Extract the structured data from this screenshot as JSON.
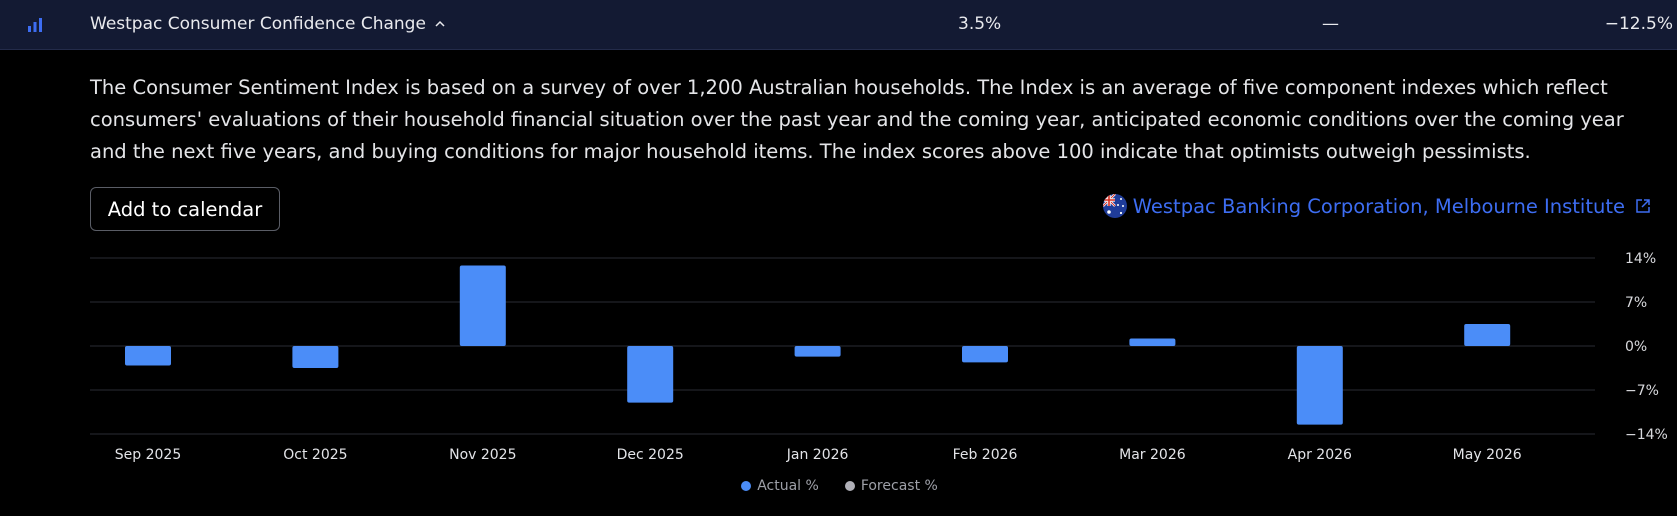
{
  "header": {
    "title": "Westpac Consumer Confidence Change",
    "actual": "3.5%",
    "forecast": "—",
    "prior": "−12.5%"
  },
  "description": "The Consumer Sentiment Index is based on a survey of over 1,200 Australian households. The Index is an average of five component indexes which reflect consumers' evaluations of their household financial situation over the past year and the coming year, anticipated economic conditions over the coming year and the next five years, and buying conditions for major household items. The index scores above 100 indicate that optimists outweigh pessimists.",
  "calendar_button": "Add to calendar",
  "source": "Westpac Banking Corporation, Melbourne Institute",
  "icons": {
    "header": "bar-chart-icon",
    "chevron": "chevron-up-icon",
    "flag": "australia-flag-icon",
    "external": "external-link-icon"
  },
  "colors": {
    "actual": "#4b8df8",
    "forecast": "#b0b0b8",
    "header_bg": "#131a33",
    "link": "#3d6df2"
  },
  "chart_data": {
    "type": "bar",
    "categories": [
      "Sep 2025",
      "Oct 2025",
      "Nov 2025",
      "Dec 2025",
      "Jan 2026",
      "Feb 2026",
      "Mar 2026",
      "Apr 2026",
      "May 2026"
    ],
    "series": [
      {
        "name": "Actual %",
        "values": [
          -3.1,
          -3.5,
          12.8,
          -9.0,
          -1.7,
          -2.6,
          1.2,
          -12.5,
          3.5
        ]
      },
      {
        "name": "Forecast %",
        "values": [
          null,
          null,
          null,
          null,
          null,
          null,
          null,
          null,
          null
        ]
      }
    ],
    "yticks": [
      "14%",
      "7%",
      "0%",
      "−7%",
      "−14%"
    ],
    "ytick_values": [
      14,
      7,
      0,
      -7,
      -14
    ],
    "ylim": [
      -14,
      14
    ],
    "grid": true,
    "legend_position": "bottom-center"
  }
}
